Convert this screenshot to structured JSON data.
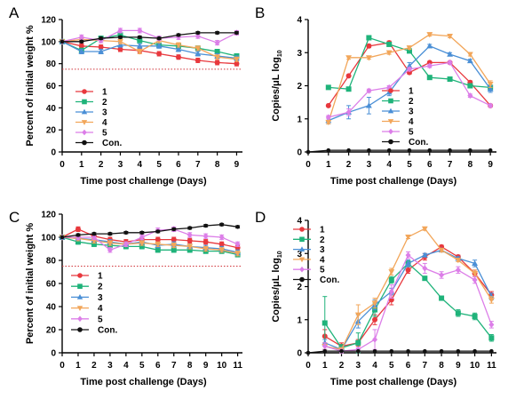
{
  "chart_data": [
    {
      "panel": "A",
      "type": "line",
      "xlabel": "Time post challenge (Days)",
      "ylabel": "Percent of initial weight %",
      "xlim": [
        0,
        9.3
      ],
      "ylim": [
        0,
        120
      ],
      "xticks": [
        0,
        1,
        2,
        3,
        4,
        5,
        6,
        7,
        8,
        9
      ],
      "yticks": [
        0,
        20,
        40,
        60,
        80,
        100,
        120
      ],
      "threshold": 75,
      "legend_position": "bottom-left",
      "x": [
        0,
        1,
        2,
        3,
        4,
        5,
        6,
        7,
        8,
        9
      ],
      "series": [
        {
          "name": "1",
          "color": "#e8383d",
          "marker": "circle",
          "values": [
            100,
            96,
            95,
            93,
            92,
            89,
            86,
            83,
            81,
            80
          ],
          "errors": [
            0,
            2,
            2,
            2,
            2,
            2,
            2,
            2,
            2,
            2
          ]
        },
        {
          "name": "2",
          "color": "#1fb37a",
          "marker": "square",
          "values": [
            100,
            92,
            103,
            106,
            101,
            97,
            96,
            94,
            91,
            87
          ],
          "errors": [
            0,
            2,
            2,
            2,
            2,
            2,
            2,
            2,
            2,
            2
          ]
        },
        {
          "name": "3",
          "color": "#4a8fd6",
          "marker": "triangle-up",
          "values": [
            100,
            91,
            91,
            97,
            96,
            96,
            93,
            89,
            87,
            85
          ],
          "errors": [
            0,
            2,
            2,
            2,
            2,
            2,
            2,
            2,
            2,
            2
          ]
        },
        {
          "name": "4",
          "color": "#f2a65a",
          "marker": "triangle-down",
          "values": [
            100,
            102,
            101,
            100,
            91,
            101,
            97,
            94,
            86,
            84
          ],
          "errors": [
            0,
            2,
            2,
            2,
            2,
            2,
            2,
            2,
            2,
            2
          ]
        },
        {
          "name": "5",
          "color": "#dc7ee8",
          "marker": "diamond",
          "values": [
            100,
            104,
            101,
            110,
            110,
            103,
            104,
            105,
            99,
            108
          ],
          "errors": [
            0,
            2,
            2,
            2,
            2,
            2,
            2,
            2,
            2,
            2
          ]
        },
        {
          "name": "Con.",
          "color": "#111111",
          "marker": "circle",
          "values": [
            100,
            100,
            103,
            104,
            104,
            103,
            106,
            108,
            108,
            108
          ],
          "errors": [
            0,
            1,
            1,
            1,
            1,
            1,
            1,
            1,
            1,
            1
          ]
        }
      ]
    },
    {
      "panel": "B",
      "type": "line",
      "xlabel": "Time post challenge  (Days)",
      "ylabel": "Copies/μL log",
      "ylabel_sub": "10",
      "xlim": [
        0,
        9.3
      ],
      "ylim": [
        0,
        4
      ],
      "xticks": [
        0,
        1,
        2,
        3,
        4,
        5,
        6,
        7,
        8,
        9
      ],
      "yticks": [
        0,
        1,
        2,
        3,
        4
      ],
      "legend_position": "bottom-right",
      "x": [
        0,
        1,
        2,
        3,
        4,
        5,
        6,
        7,
        8,
        9
      ],
      "series": [
        {
          "name": "1",
          "color": "#e8383d",
          "marker": "circle",
          "x": [
            1,
            2,
            3,
            4,
            5,
            6,
            7,
            8,
            9
          ],
          "values": [
            1.4,
            2.3,
            3.2,
            3.3,
            2.4,
            2.7,
            2.7,
            2.1,
            1.4
          ],
          "errors": [
            0,
            0,
            0.05,
            0.05,
            0.05,
            0,
            0,
            0.05,
            0
          ]
        },
        {
          "name": "2",
          "color": "#1fb37a",
          "marker": "square",
          "x": [
            1,
            2,
            3,
            4,
            5,
            6,
            7,
            8,
            9
          ],
          "values": [
            1.95,
            1.9,
            3.45,
            3.25,
            3.05,
            2.25,
            2.2,
            2.0,
            1.95
          ],
          "errors": [
            0.05,
            0.05,
            0.05,
            0.05,
            0.05,
            0.05,
            0.05,
            0.05,
            0.05
          ]
        },
        {
          "name": "3",
          "color": "#4a8fd6",
          "marker": "triangle-up",
          "x": [
            1,
            2,
            3,
            4,
            5,
            6,
            7,
            8,
            9
          ],
          "values": [
            0.95,
            1.2,
            1.4,
            1.8,
            2.6,
            3.2,
            2.95,
            2.75,
            1.9
          ],
          "errors": [
            0.1,
            0.2,
            0.25,
            0.1,
            0.1,
            0.05,
            0.05,
            0.05,
            0.1
          ]
        },
        {
          "name": "4",
          "color": "#f2a65a",
          "marker": "triangle-down",
          "x": [
            1,
            2,
            3,
            4,
            5,
            6,
            7,
            8,
            9
          ],
          "values": [
            0.9,
            2.85,
            2.85,
            3.0,
            3.15,
            3.55,
            3.5,
            2.95,
            2.05
          ],
          "errors": [
            0.05,
            0.05,
            0.05,
            0.05,
            0.05,
            0.05,
            0.05,
            0.05,
            0.1
          ]
        },
        {
          "name": "5",
          "color": "#dc7ee8",
          "marker": "diamond",
          "x": [
            1,
            2,
            3,
            4,
            5,
            6,
            7,
            8,
            9
          ],
          "values": [
            1.05,
            1.2,
            1.85,
            1.95,
            2.5,
            2.6,
            2.7,
            1.7,
            1.4
          ],
          "errors": [
            0.05,
            0.1,
            0.05,
            0.05,
            0.05,
            0.05,
            0.05,
            0.05,
            0.05
          ]
        },
        {
          "name": "Con.",
          "color": "#111111",
          "marker": "circle",
          "x": [
            0,
            1,
            2,
            3,
            4,
            5,
            6,
            7,
            8,
            9
          ],
          "values": [
            0,
            0.05,
            0.05,
            0.05,
            0.05,
            0.05,
            0.05,
            0.05,
            0.05,
            0.05
          ],
          "errors": [
            0,
            0,
            0,
            0,
            0,
            0,
            0,
            0,
            0,
            0
          ]
        }
      ]
    },
    {
      "panel": "C",
      "type": "line",
      "xlabel": "Time post challenge (Days)",
      "ylabel": "Percent of initial weight %",
      "xlim": [
        0,
        11.3
      ],
      "ylim": [
        0,
        120
      ],
      "xticks": [
        0,
        1,
        2,
        3,
        4,
        5,
        6,
        7,
        8,
        9,
        10,
        11
      ],
      "yticks": [
        0,
        20,
        40,
        60,
        80,
        100,
        120
      ],
      "threshold": 75,
      "legend_position": "bottom-left",
      "x": [
        0,
        1,
        2,
        3,
        4,
        5,
        6,
        7,
        8,
        9,
        10,
        11
      ],
      "series": [
        {
          "name": "1",
          "color": "#e8383d",
          "marker": "circle",
          "values": [
            100,
            107,
            101,
            98,
            96,
            98,
            98,
            98,
            97,
            96,
            94,
            91
          ],
          "errors": [
            0,
            2,
            2,
            2,
            2,
            2,
            2,
            2,
            2,
            2,
            2,
            2
          ]
        },
        {
          "name": "2",
          "color": "#1fb37a",
          "marker": "square",
          "values": [
            100,
            96,
            94,
            93,
            92,
            92,
            89,
            89,
            89,
            88,
            88,
            85
          ],
          "errors": [
            0,
            2,
            2,
            2,
            2,
            2,
            2,
            2,
            2,
            2,
            2,
            2
          ]
        },
        {
          "name": "3",
          "color": "#4a8fd6",
          "marker": "triangle-up",
          "values": [
            100,
            99,
            98,
            96,
            94,
            96,
            93,
            94,
            92,
            91,
            90,
            87
          ],
          "errors": [
            0,
            2,
            2,
            2,
            2,
            2,
            2,
            2,
            2,
            2,
            2,
            2
          ]
        },
        {
          "name": "4",
          "color": "#f2a65a",
          "marker": "triangle-down",
          "values": [
            100,
            99,
            97,
            95,
            94,
            95,
            94,
            93,
            92,
            90,
            89,
            86
          ],
          "errors": [
            0,
            2,
            2,
            2,
            2,
            2,
            2,
            2,
            2,
            2,
            2,
            2
          ]
        },
        {
          "name": "5",
          "color": "#dc7ee8",
          "marker": "diamond",
          "values": [
            100,
            100,
            100,
            89,
            94,
            100,
            106,
            107,
            102,
            101,
            100,
            94
          ],
          "errors": [
            0,
            2,
            2,
            2,
            2,
            2,
            2,
            2,
            2,
            2,
            2,
            2
          ]
        },
        {
          "name": "Con.",
          "color": "#111111",
          "marker": "circle",
          "values": [
            100,
            102,
            103,
            103,
            104,
            104,
            105,
            107,
            108,
            110,
            111,
            109
          ],
          "errors": [
            0,
            1,
            1,
            1,
            1,
            1,
            1,
            1,
            1,
            1,
            1,
            1
          ]
        }
      ]
    },
    {
      "panel": "D",
      "type": "line",
      "xlabel": "Time post challenge  (Days)",
      "ylabel": "Copies/μL log",
      "ylabel_sub": "10",
      "xlim": [
        0,
        11.3
      ],
      "ylim": [
        0,
        4
      ],
      "xticks": [
        0,
        1,
        2,
        3,
        4,
        5,
        6,
        7,
        8,
        9,
        10,
        11
      ],
      "yticks": [
        0,
        1,
        2,
        3,
        4
      ],
      "legend_position": "top-left",
      "x": [
        0,
        1,
        2,
        3,
        4,
        5,
        6,
        7,
        8,
        9,
        10,
        11
      ],
      "series": [
        {
          "name": "1",
          "color": "#e8383d",
          "marker": "circle",
          "x": [
            1,
            2,
            3,
            4,
            5,
            6,
            7,
            8,
            9,
            10,
            11
          ],
          "values": [
            0.5,
            0.2,
            0.3,
            1.0,
            1.6,
            2.5,
            2.9,
            3.2,
            2.9,
            2.4,
            1.75
          ],
          "errors": [
            0.2,
            0.1,
            0.1,
            0.15,
            0.15,
            0.1,
            0.1,
            0.05,
            0.05,
            0.1,
            0.1
          ]
        },
        {
          "name": "2",
          "color": "#1fb37a",
          "marker": "square",
          "x": [
            1,
            2,
            3,
            4,
            5,
            6,
            7,
            8,
            9,
            10,
            11
          ],
          "values": [
            0.9,
            0.15,
            0.3,
            1.3,
            2.2,
            2.7,
            2.25,
            1.65,
            1.2,
            1.1,
            0.45
          ],
          "errors": [
            0.8,
            0.1,
            0.3,
            0.2,
            0.1,
            0.1,
            0.05,
            0.05,
            0.1,
            0.1,
            0.1
          ]
        },
        {
          "name": "3",
          "color": "#4a8fd6",
          "marker": "triangle-up",
          "x": [
            1,
            2,
            3,
            4,
            5,
            6,
            7,
            8,
            9,
            10,
            11
          ],
          "values": [
            0.3,
            0.1,
            0.95,
            1.45,
            1.85,
            2.7,
            2.95,
            3.1,
            2.85,
            2.7,
            1.7
          ],
          "errors": [
            0.1,
            0.05,
            0.2,
            0.15,
            0.1,
            0.1,
            0.05,
            0.05,
            0.05,
            0.1,
            0.1
          ]
        },
        {
          "name": "4",
          "color": "#f2a65a",
          "marker": "triangle-down",
          "x": [
            1,
            2,
            3,
            4,
            5,
            6,
            7,
            8,
            9,
            10,
            11
          ],
          "values": [
            0.2,
            0.1,
            1.15,
            1.5,
            2.45,
            3.5,
            3.75,
            3.1,
            2.8,
            2.4,
            1.6
          ],
          "errors": [
            0.1,
            0.05,
            0.3,
            0.15,
            0.1,
            0.05,
            0.05,
            0.05,
            0.05,
            0.1,
            0.1
          ]
        },
        {
          "name": "5",
          "color": "#dc7ee8",
          "marker": "diamond",
          "x": [
            1,
            2,
            3,
            4,
            5,
            6,
            7,
            8,
            9,
            10,
            11
          ],
          "values": [
            0.2,
            0.05,
            0.1,
            0.4,
            1.85,
            2.95,
            2.55,
            2.35,
            2.5,
            2.2,
            0.85
          ],
          "errors": [
            0.1,
            0.05,
            0.05,
            0.3,
            0.2,
            0.1,
            0.15,
            0.1,
            0.1,
            0.1,
            0.1
          ]
        },
        {
          "name": "Con.",
          "color": "#111111",
          "marker": "circle",
          "x": [
            0,
            1,
            2,
            3,
            4,
            5,
            6,
            7,
            8,
            9,
            10,
            11
          ],
          "values": [
            0,
            0.05,
            0.05,
            0.05,
            0.05,
            0.05,
            0.05,
            0.05,
            0.05,
            0.05,
            0.05,
            0.05
          ],
          "errors": [
            0,
            0,
            0,
            0,
            0,
            0,
            0,
            0,
            0,
            0,
            0,
            0
          ]
        }
      ]
    }
  ]
}
